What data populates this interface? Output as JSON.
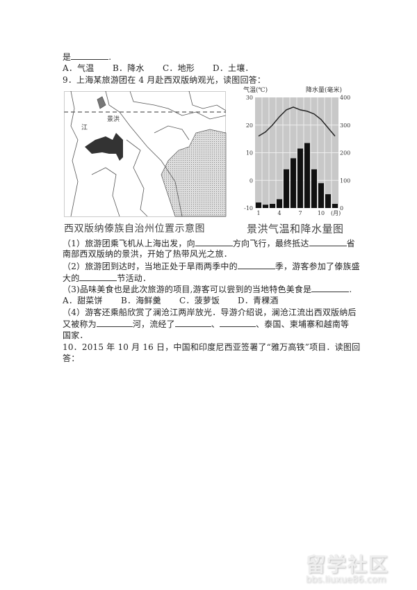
{
  "q8_tail": {
    "text": "是",
    "end": ".",
    "options": [
      "A．气温",
      "B．降水",
      "C．地形",
      "D．土壤．"
    ]
  },
  "q9": {
    "stem": "9．上海某旅游团在 4 月赴西双版纳观光，读图回答：",
    "map": {
      "caption": "西双版纳傣族自治州位置示意图",
      "labels": [
        "景洪",
        "江"
      ]
    },
    "sub1": {
      "a": "（1）旅游团乘飞机从上海出发，向",
      "b": "方向飞行，最终抵达",
      "c": "省",
      "d": "南部西双版纳的景洪，开始了热带风光之旅．"
    },
    "sub2": {
      "a": "（2）旅游团到达时，当地正处于旱雨两季中的",
      "b": "季，游客参加了傣族盛",
      "c": "大的",
      "d": "节活动．"
    },
    "sub3": {
      "a": "（3)品味美食也是此次旅游的项目,游客可以尝到的当地特色美食是",
      "end": ".",
      "options": [
        "A．甜菜饼",
        "B．海鲜羹",
        "C．菠萝饭",
        "D．青稞酒"
      ]
    },
    "sub4": {
      "a": "（4）游客还乘船欣赏了澜沧江两岸放光．导游介绍说，澜沧江流出西双版纳后",
      "b": "又被称为",
      "c": "河，流经了",
      "d": "、",
      "e": "、泰国、柬埔寨和越南等",
      "f": "国家．"
    }
  },
  "q10": {
    "a": "10．2015 年 10 月 16 日，中国和印度尼西亚签署了“雅万高铁”项目．读图回",
    "b": "答："
  },
  "chart_data": {
    "type": "bar+line",
    "title": "景洪气温和降水量图",
    "ylabel_left": "气温(℃)",
    "ylabel_right": "降水量(毫米)",
    "xlabel": "(月)",
    "x_ticks": [
      "1",
      "4",
      "7",
      "10"
    ],
    "left_ticks": [
      "30",
      "20",
      "10",
      "0",
      "-10"
    ],
    "right_ticks": [
      "400",
      "300",
      "200",
      "100",
      "0"
    ],
    "ylim_left": [
      -10,
      30
    ],
    "ylim_right": [
      0,
      400
    ],
    "months": [
      1,
      2,
      3,
      4,
      5,
      6,
      7,
      8,
      9,
      10,
      11,
      12
    ],
    "temperature": [
      16,
      17.5,
      20,
      23,
      25.5,
      26.5,
      25.5,
      25,
      24,
      22,
      19,
      16
    ],
    "precipitation": [
      20,
      12,
      15,
      32,
      140,
      180,
      215,
      235,
      140,
      90,
      50,
      15
    ],
    "colors": {
      "bars": "#111111",
      "line": "#222222",
      "background": "#c8c8c8"
    }
  },
  "watermark": {
    "big": "留学社区",
    "small": "bbs.liuxue86.com"
  }
}
